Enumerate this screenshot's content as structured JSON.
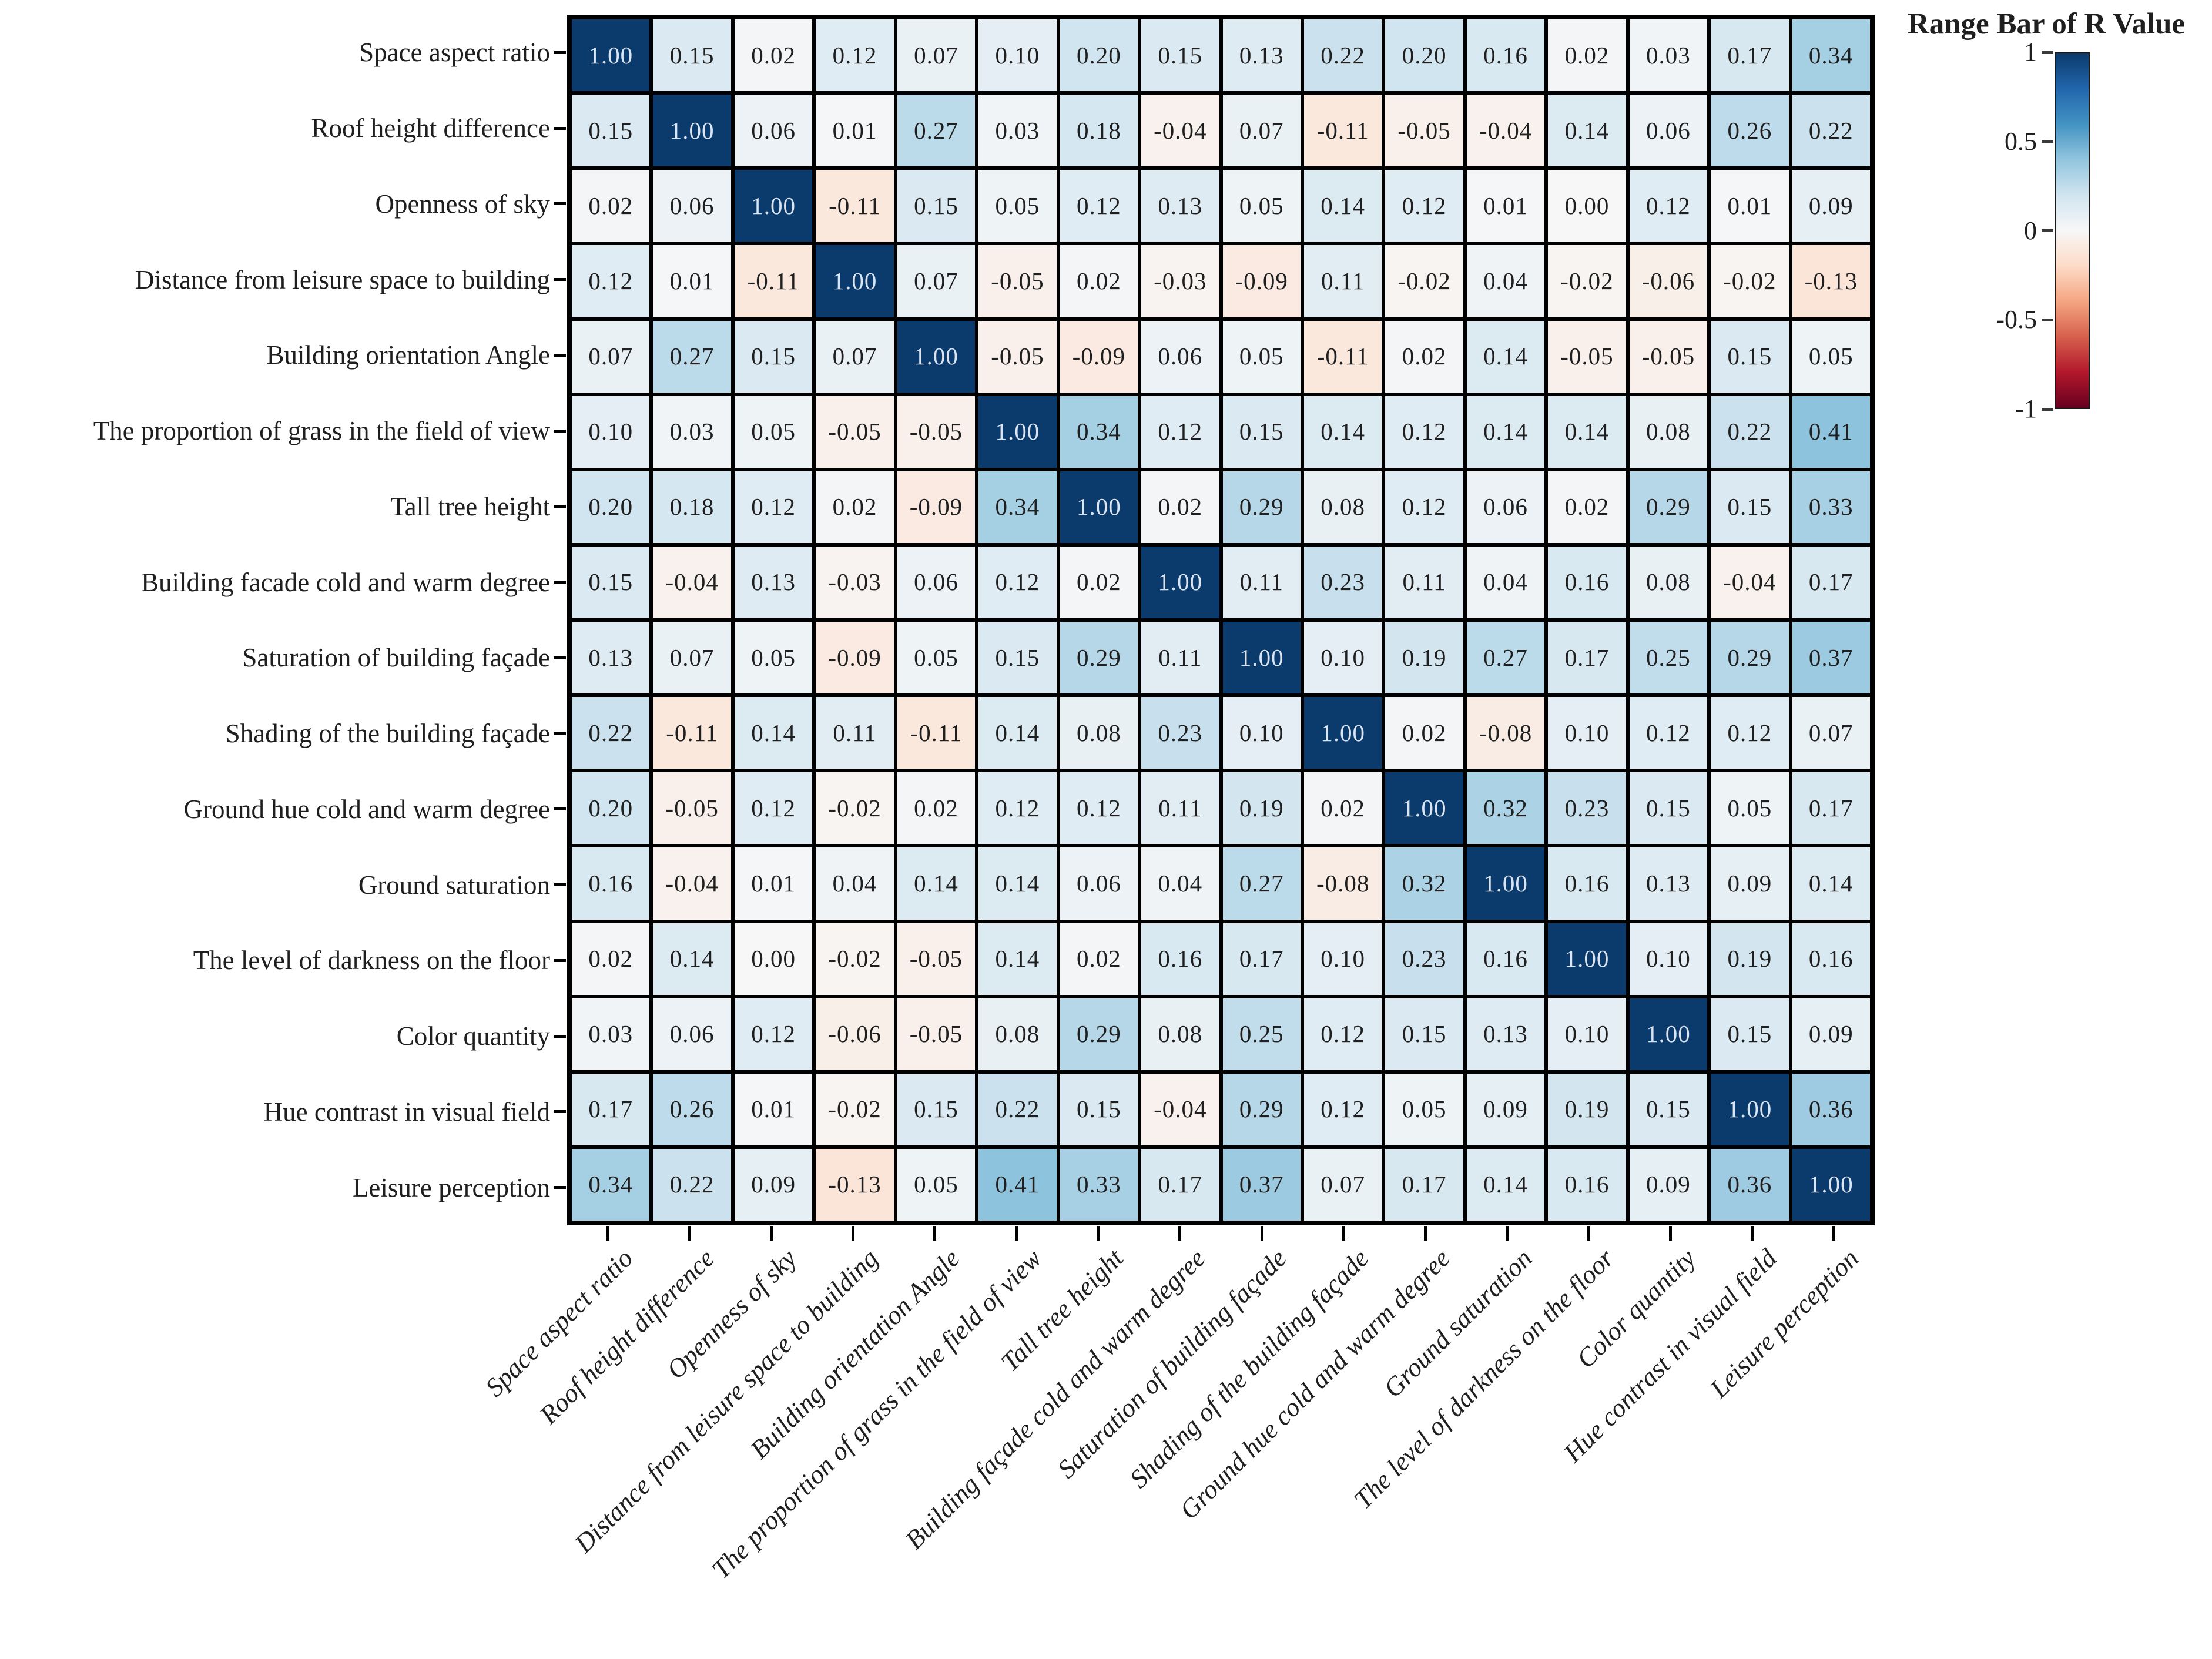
{
  "chart_data": {
    "type": "heatmap",
    "title": "",
    "legend_title": "Range Bar of R Value",
    "legend_position": "top-right",
    "colorbar_ticks": [
      "1",
      "0.5",
      "0",
      "-0.5",
      "-1"
    ],
    "colorbar_tick_values": [
      1,
      0.5,
      0,
      -0.5,
      -1
    ],
    "value_range": [
      -1,
      1
    ],
    "colormap": "RdBu_r",
    "grid": "thick black cell borders",
    "y_labels": [
      "Space aspect ratio",
      "Roof height difference",
      "Openness of sky",
      "Distance from leisure space to building",
      "Building orientation Angle",
      "The proportion of grass in the field of view",
      "Tall tree height",
      "Building facade cold and warm degree",
      "Saturation of building façade",
      "Shading of the building façade",
      "Ground hue cold and warm degree",
      "Ground saturation",
      "The level of darkness on the floor",
      "Color quantity",
      "Hue contrast in visual field",
      "Leisure perception"
    ],
    "x_labels": [
      "Space aspect ratio",
      "Roof height difference",
      "Openness of sky",
      "Distance from leisure space to building",
      "Building orientation Angle",
      "The proportion of grass in the field of view",
      "Tall tree height",
      "Building façade cold and warm degree",
      "Saturation of building façade",
      "Shading of the building façade",
      "Ground hue cold and warm degree",
      "Ground saturation",
      "The level of darkness on the floor",
      "Color quantity",
      "Hue contrast in visual field",
      "Leisure perception"
    ],
    "values": [
      [
        1.0,
        0.15,
        0.02,
        0.12,
        0.07,
        0.1,
        0.2,
        0.15,
        0.13,
        0.22,
        0.2,
        0.16,
        0.02,
        0.03,
        0.17,
        0.34
      ],
      [
        0.15,
        1.0,
        0.06,
        0.01,
        0.27,
        0.03,
        0.18,
        -0.04,
        0.07,
        -0.11,
        -0.05,
        -0.04,
        0.14,
        0.06,
        0.26,
        0.22
      ],
      [
        0.02,
        0.06,
        1.0,
        -0.11,
        0.15,
        0.05,
        0.12,
        0.13,
        0.05,
        0.14,
        0.12,
        0.01,
        0.0,
        0.12,
        0.01,
        0.09
      ],
      [
        0.12,
        0.01,
        -0.11,
        1.0,
        0.07,
        -0.05,
        0.02,
        -0.03,
        -0.09,
        0.11,
        -0.02,
        0.04,
        -0.02,
        -0.06,
        -0.02,
        -0.13
      ],
      [
        0.07,
        0.27,
        0.15,
        0.07,
        1.0,
        -0.05,
        -0.09,
        0.06,
        0.05,
        -0.11,
        0.02,
        0.14,
        -0.05,
        -0.05,
        0.15,
        0.05
      ],
      [
        0.1,
        0.03,
        0.05,
        -0.05,
        -0.05,
        1.0,
        0.34,
        0.12,
        0.15,
        0.14,
        0.12,
        0.14,
        0.14,
        0.08,
        0.22,
        0.41
      ],
      [
        0.2,
        0.18,
        0.12,
        0.02,
        -0.09,
        0.34,
        1.0,
        0.02,
        0.29,
        0.08,
        0.12,
        0.06,
        0.02,
        0.29,
        0.15,
        0.33
      ],
      [
        0.15,
        -0.04,
        0.13,
        -0.03,
        0.06,
        0.12,
        0.02,
        1.0,
        0.11,
        0.23,
        0.11,
        0.04,
        0.16,
        0.08,
        -0.04,
        0.17
      ],
      [
        0.13,
        0.07,
        0.05,
        -0.09,
        0.05,
        0.15,
        0.29,
        0.11,
        1.0,
        0.1,
        0.19,
        0.27,
        0.17,
        0.25,
        0.29,
        0.37
      ],
      [
        0.22,
        -0.11,
        0.14,
        0.11,
        -0.11,
        0.14,
        0.08,
        0.23,
        0.1,
        1.0,
        0.02,
        -0.08,
        0.1,
        0.12,
        0.12,
        0.07
      ],
      [
        0.2,
        -0.05,
        0.12,
        -0.02,
        0.02,
        0.12,
        0.12,
        0.11,
        0.19,
        0.02,
        1.0,
        0.32,
        0.23,
        0.15,
        0.05,
        0.17
      ],
      [
        0.16,
        -0.04,
        0.01,
        0.04,
        0.14,
        0.14,
        0.06,
        0.04,
        0.27,
        -0.08,
        0.32,
        1.0,
        0.16,
        0.13,
        0.09,
        0.14
      ],
      [
        0.02,
        0.14,
        0.0,
        -0.02,
        -0.05,
        0.14,
        0.02,
        0.16,
        0.17,
        0.1,
        0.23,
        0.16,
        1.0,
        0.1,
        0.19,
        0.16
      ],
      [
        0.03,
        0.06,
        0.12,
        -0.06,
        -0.05,
        0.08,
        0.29,
        0.08,
        0.25,
        0.12,
        0.15,
        0.13,
        0.1,
        1.0,
        0.15,
        0.09
      ],
      [
        0.17,
        0.26,
        0.01,
        -0.02,
        0.15,
        0.22,
        0.15,
        -0.04,
        0.29,
        0.12,
        0.05,
        0.09,
        0.19,
        0.15,
        1.0,
        0.36
      ],
      [
        0.34,
        0.22,
        0.09,
        -0.13,
        0.05,
        0.41,
        0.33,
        0.17,
        0.37,
        0.07,
        0.17,
        0.14,
        0.16,
        0.09,
        0.36,
        1.0
      ]
    ]
  },
  "colors": {
    "cell_text": "#1f1f1f",
    "diagonal_text": "#dbe5f1",
    "grid_line": "#000000",
    "background": "#ffffff",
    "colormap_stops": [
      {
        "v": -1.0,
        "c": "#67001f"
      },
      {
        "v": -0.8,
        "c": "#b2182b"
      },
      {
        "v": -0.6,
        "c": "#d6604d"
      },
      {
        "v": -0.4,
        "c": "#f4a582"
      },
      {
        "v": -0.2,
        "c": "#fddbc7"
      },
      {
        "v": 0.0,
        "c": "#f7f7f7"
      },
      {
        "v": 0.2,
        "c": "#d1e5f0"
      },
      {
        "v": 0.4,
        "c": "#92c5de"
      },
      {
        "v": 0.6,
        "c": "#4393c3"
      },
      {
        "v": 0.8,
        "c": "#2166ac"
      },
      {
        "v": 1.0,
        "c": "#0b3a6d"
      }
    ]
  }
}
